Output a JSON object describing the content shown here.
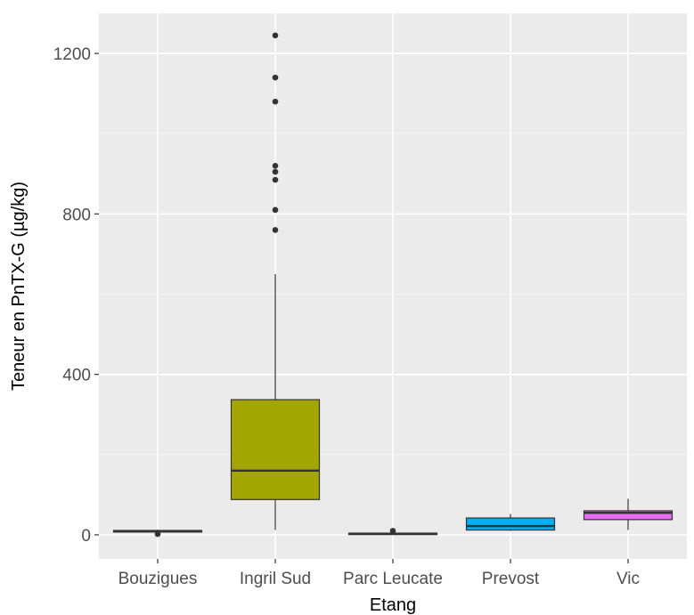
{
  "chart_data": {
    "type": "boxplot",
    "xlabel": "Etang",
    "ylabel": "Teneur en PnTX-G (µg/kg)",
    "yticks": [
      0,
      400,
      800,
      1200
    ],
    "ylim": [
      -60,
      1300
    ],
    "grid": true,
    "legend": "none",
    "categories": [
      "Bouzigues",
      "Ingril Sud",
      "Parc Leucate",
      "Prevost",
      "Vic"
    ],
    "boxes": [
      {
        "category": "Bouzigues",
        "lower_whisker": 5,
        "q1": 7,
        "median": 9,
        "q3": 11,
        "upper_whisker": 13,
        "outliers": [
          2
        ],
        "color": "#F8766D"
      },
      {
        "category": "Ingril Sud",
        "lower_whisker": 12,
        "q1": 88,
        "median": 160,
        "q3": 337,
        "upper_whisker": 650,
        "outliers": [
          760,
          810,
          885,
          905,
          920,
          1080,
          1140,
          1245
        ],
        "color": "#A3A500"
      },
      {
        "category": "Parc Leucate",
        "lower_whisker": 1,
        "q1": 2,
        "median": 3,
        "q3": 4,
        "upper_whisker": 5,
        "outliers": [
          10
        ],
        "color": "#00BF7D"
      },
      {
        "category": "Prevost",
        "lower_whisker": 10,
        "q1": 12,
        "median": 22,
        "q3": 42,
        "upper_whisker": 52,
        "outliers": [],
        "color": "#00B0F6"
      },
      {
        "category": "Vic",
        "lower_whisker": 12,
        "q1": 38,
        "median": 55,
        "q3": 60,
        "upper_whisker": 90,
        "outliers": [],
        "color": "#E76BF3"
      }
    ]
  },
  "colors": {
    "panel_background": "#EBEBEB",
    "grid_major": "#FFFFFF",
    "grid_minor": "#F5F5F5",
    "box_outline": "#333333",
    "outlier": "#333333"
  }
}
